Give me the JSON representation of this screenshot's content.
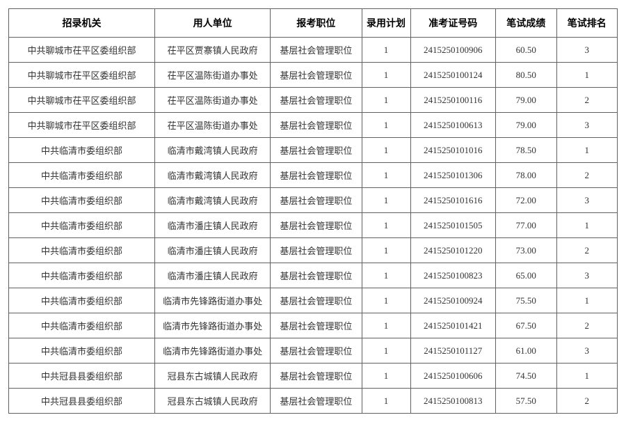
{
  "table": {
    "background_color": "#ffffff",
    "border_color": "#606060",
    "header_fontsize": 14,
    "cell_fontsize": 13,
    "text_color": "#333333",
    "header_text_color": "#000000",
    "font_family": "SimSun",
    "columns": [
      {
        "key": "org",
        "label": "招录机关",
        "width": "24%"
      },
      {
        "key": "unit",
        "label": "用人单位",
        "width": "19%"
      },
      {
        "key": "pos",
        "label": "报考职位",
        "width": "15%"
      },
      {
        "key": "plan",
        "label": "录用计划",
        "width": "8%"
      },
      {
        "key": "ticket",
        "label": "准考证号码",
        "width": "14%"
      },
      {
        "key": "score",
        "label": "笔试成绩",
        "width": "10%"
      },
      {
        "key": "rank",
        "label": "笔试排名",
        "width": "10%"
      }
    ],
    "rows": [
      {
        "org": "中共聊城市茌平区委组织部",
        "unit": "茌平区贾寨镇人民政府",
        "pos": "基层社会管理职位",
        "plan": "1",
        "ticket": "2415250100906",
        "score": "60.50",
        "rank": "3"
      },
      {
        "org": "中共聊城市茌平区委组织部",
        "unit": "茌平区温陈街道办事处",
        "pos": "基层社会管理职位",
        "plan": "1",
        "ticket": "2415250100124",
        "score": "80.50",
        "rank": "1"
      },
      {
        "org": "中共聊城市茌平区委组织部",
        "unit": "茌平区温陈街道办事处",
        "pos": "基层社会管理职位",
        "plan": "1",
        "ticket": "2415250100116",
        "score": "79.00",
        "rank": "2"
      },
      {
        "org": "中共聊城市茌平区委组织部",
        "unit": "茌平区温陈街道办事处",
        "pos": "基层社会管理职位",
        "plan": "1",
        "ticket": "2415250100613",
        "score": "79.00",
        "rank": "3"
      },
      {
        "org": "中共临清市委组织部",
        "unit": "临清市戴湾镇人民政府",
        "pos": "基层社会管理职位",
        "plan": "1",
        "ticket": "2415250101016",
        "score": "78.50",
        "rank": "1"
      },
      {
        "org": "中共临清市委组织部",
        "unit": "临清市戴湾镇人民政府",
        "pos": "基层社会管理职位",
        "plan": "1",
        "ticket": "2415250101306",
        "score": "78.00",
        "rank": "2"
      },
      {
        "org": "中共临清市委组织部",
        "unit": "临清市戴湾镇人民政府",
        "pos": "基层社会管理职位",
        "plan": "1",
        "ticket": "2415250101616",
        "score": "72.00",
        "rank": "3"
      },
      {
        "org": "中共临清市委组织部",
        "unit": "临清市潘庄镇人民政府",
        "pos": "基层社会管理职位",
        "plan": "1",
        "ticket": "2415250101505",
        "score": "77.00",
        "rank": "1"
      },
      {
        "org": "中共临清市委组织部",
        "unit": "临清市潘庄镇人民政府",
        "pos": "基层社会管理职位",
        "plan": "1",
        "ticket": "2415250101220",
        "score": "73.00",
        "rank": "2"
      },
      {
        "org": "中共临清市委组织部",
        "unit": "临清市潘庄镇人民政府",
        "pos": "基层社会管理职位",
        "plan": "1",
        "ticket": "2415250100823",
        "score": "65.00",
        "rank": "3"
      },
      {
        "org": "中共临清市委组织部",
        "unit": "临清市先锋路街道办事处",
        "pos": "基层社会管理职位",
        "plan": "1",
        "ticket": "2415250100924",
        "score": "75.50",
        "rank": "1"
      },
      {
        "org": "中共临清市委组织部",
        "unit": "临清市先锋路街道办事处",
        "pos": "基层社会管理职位",
        "plan": "1",
        "ticket": "2415250101421",
        "score": "67.50",
        "rank": "2"
      },
      {
        "org": "中共临清市委组织部",
        "unit": "临清市先锋路街道办事处",
        "pos": "基层社会管理职位",
        "plan": "1",
        "ticket": "2415250101127",
        "score": "61.00",
        "rank": "3"
      },
      {
        "org": "中共冠县县委组织部",
        "unit": "冠县东古城镇人民政府",
        "pos": "基层社会管理职位",
        "plan": "1",
        "ticket": "2415250100606",
        "score": "74.50",
        "rank": "1"
      },
      {
        "org": "中共冠县县委组织部",
        "unit": "冠县东古城镇人民政府",
        "pos": "基层社会管理职位",
        "plan": "1",
        "ticket": "2415250100813",
        "score": "57.50",
        "rank": "2"
      }
    ]
  }
}
